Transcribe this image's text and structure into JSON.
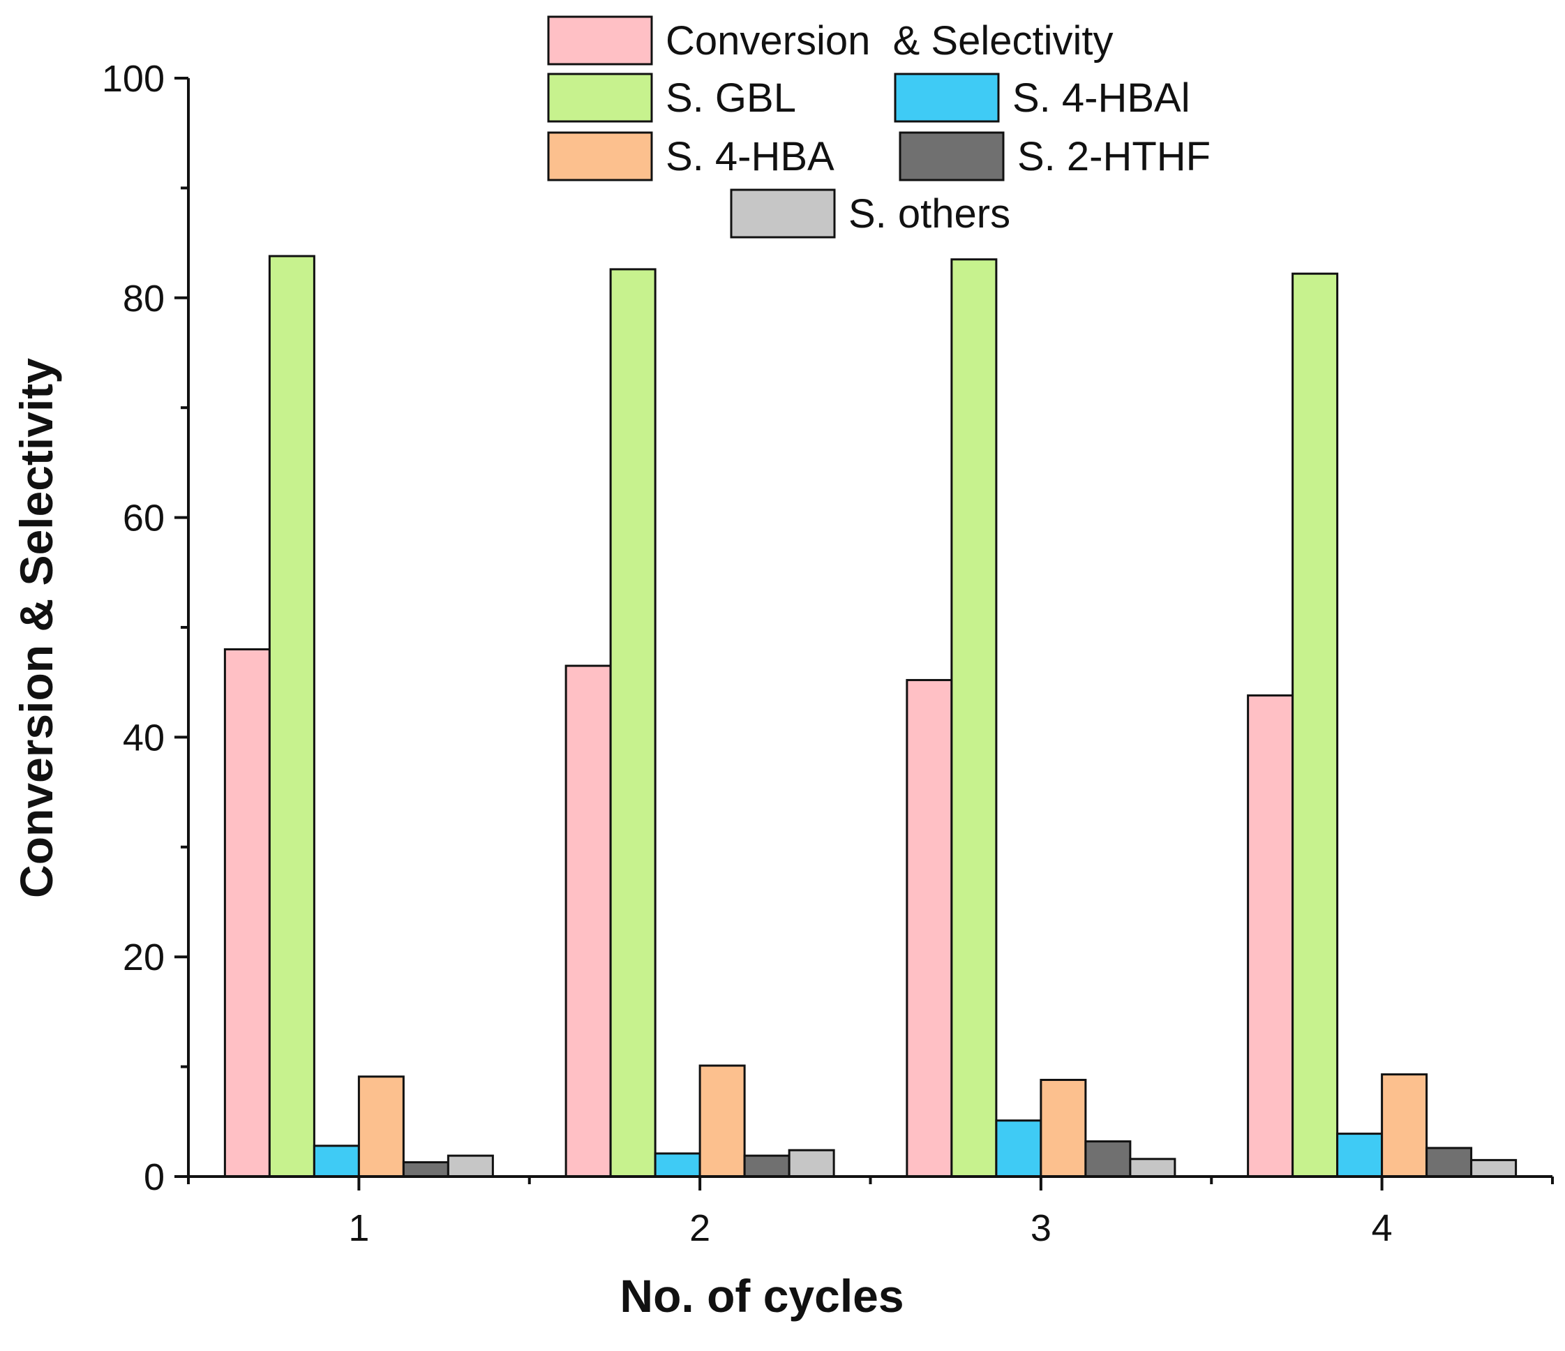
{
  "chart_data": {
    "type": "bar",
    "title": "",
    "xlabel": "No. of cycles",
    "ylabel": "Conversion & Selectivity",
    "categories": [
      "1",
      "2",
      "3",
      "4"
    ],
    "ylim": [
      0,
      100
    ],
    "yticks": [
      0,
      20,
      40,
      60,
      80,
      100
    ],
    "grid": false,
    "legend_position": "top",
    "series": [
      {
        "name": "Conversion  & Selectivity",
        "color": "#FFC0C5",
        "values": [
          48.0,
          46.5,
          45.2,
          43.8
        ]
      },
      {
        "name": "S. GBL",
        "color": "#C7F28E",
        "values": [
          83.8,
          82.6,
          83.5,
          82.2
        ]
      },
      {
        "name": "S. 4-HBAl",
        "color": "#3FCBF5",
        "values": [
          2.8,
          2.1,
          5.1,
          3.9
        ]
      },
      {
        "name": "S. 4-HBA",
        "color": "#FCC08E",
        "values": [
          9.1,
          10.1,
          8.8,
          9.3
        ]
      },
      {
        "name": "S. 2-HTHF",
        "color": "#707070",
        "values": [
          1.3,
          1.9,
          3.2,
          2.6
        ]
      },
      {
        "name": "S. others",
        "color": "#C6C6C6",
        "values": [
          1.9,
          2.4,
          1.6,
          1.5
        ]
      }
    ]
  }
}
